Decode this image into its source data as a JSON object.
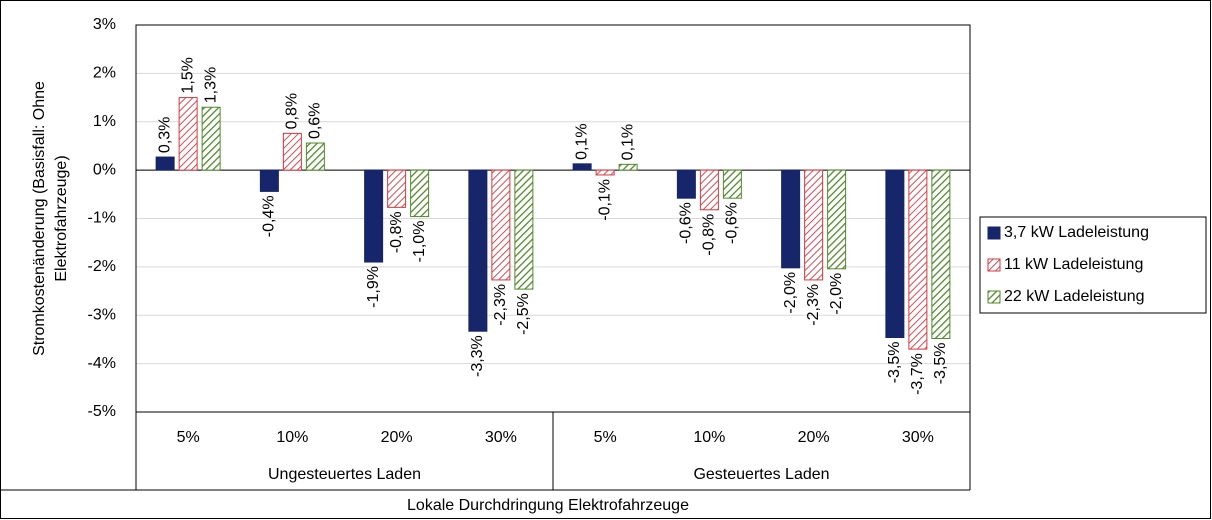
{
  "chart_data": {
    "type": "grouped_bar",
    "ylabel": [
      "Stromkostenänderung (Basisfall: Ohne",
      "Elektrofahrzeuge)"
    ],
    "xlabel": "Lokale Durchdringung Elektrofahrzeuge",
    "categories": [
      "5%",
      "10%",
      "20%",
      "30%",
      "5%",
      "10%",
      "20%",
      "30%"
    ],
    "groups": [
      "Ungesteuertes Laden",
      "Gesteuertes Laden"
    ],
    "ylim": [
      -5,
      3
    ],
    "yticks": [
      {
        "value": -5,
        "label": "-5%"
      },
      {
        "value": -4,
        "label": "-4%"
      },
      {
        "value": -3,
        "label": "-3%"
      },
      {
        "value": -2,
        "label": "-2%"
      },
      {
        "value": -1,
        "label": "-1%"
      },
      {
        "value": 0,
        "label": "0%"
      },
      {
        "value": 1,
        "label": "1%"
      },
      {
        "value": 2,
        "label": "2%"
      },
      {
        "value": 3,
        "label": "3%"
      }
    ],
    "grid": true,
    "legend": "right",
    "series": [
      {
        "name": "3,7 kW Ladeleistung",
        "color": "#17256b",
        "pattern": "solid",
        "values": [
          0.27,
          -0.44,
          -1.9,
          -3.33,
          0.13,
          -0.58,
          -2.02,
          -3.46
        ],
        "value_labels": [
          "0,3%",
          "-0,4%",
          "-1,9%",
          "-3,3%",
          "0,1%",
          "-0,6%",
          "-2,0%",
          "-3,5%"
        ]
      },
      {
        "name": "11 kW Ladeleistung",
        "color": "#d9363e",
        "pattern": "hatch",
        "values": [
          1.5,
          0.76,
          -0.77,
          -2.27,
          -0.1,
          -0.82,
          -2.27,
          -3.7
        ],
        "value_labels": [
          "1,5%",
          "0,8%",
          "-0,8%",
          "-2,3%",
          "-0,1%",
          "-0,8%",
          "-2,3%",
          "-3,7%"
        ]
      },
      {
        "name": "22 kW Ladeleistung",
        "color": "#4f8a2a",
        "pattern": "hatch",
        "values": [
          1.3,
          0.56,
          -0.96,
          -2.46,
          0.12,
          -0.58,
          -2.04,
          -3.48
        ],
        "value_labels": [
          "1,3%",
          "0,6%",
          "-1,0%",
          "-2,5%",
          "0,1%",
          "-0,6%",
          "-2,0%",
          "-3,5%"
        ]
      }
    ]
  }
}
